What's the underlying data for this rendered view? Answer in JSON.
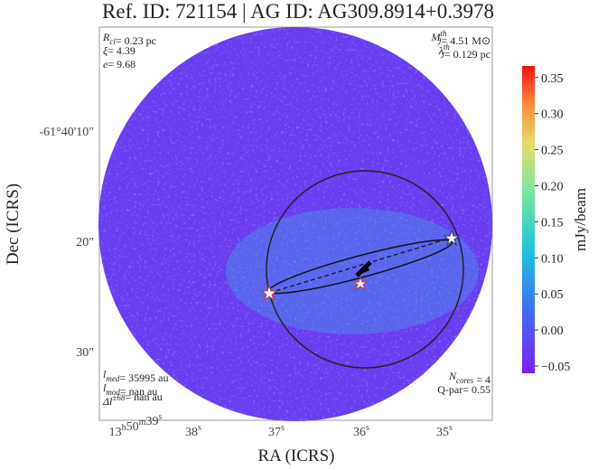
{
  "chart_data": {
    "type": "image",
    "title": "Ref. ID: 721154 | AG ID: AG309.8914+0.3978",
    "xlabel": "RA (ICRS)",
    "ylabel": "Dec (ICRS)",
    "xticks": [
      [
        [
          "13",
          "h"
        ],
        [
          "50",
          "m"
        ],
        [
          "39",
          "s"
        ]
      ],
      [
        [
          "38",
          "s"
        ]
      ],
      [
        [
          "37",
          "s"
        ]
      ],
      [
        [
          "36",
          "s"
        ]
      ],
      [
        [
          "35",
          "s"
        ]
      ]
    ],
    "yticks": [
      "-61°40'10\"",
      "20\"",
      "30\""
    ],
    "annotations": {
      "top_left": [
        [
          [
            "R",
            "cl",
            ""
          ],
          [
            "= 0.23 pc",
            "",
            ""
          ]
        ],
        [
          [
            "ξ",
            "",
            ""
          ],
          [
            "= 4.39",
            "",
            ""
          ]
        ],
        [
          [
            "e",
            "",
            ""
          ],
          [
            "= 9.68",
            "",
            ""
          ]
        ]
      ],
      "top_right": [
        [
          [
            "M",
            "J",
            "th"
          ],
          [
            "= 4.51 M",
            "",
            ""
          ],
          [
            "⊙",
            "",
            ""
          ]
        ],
        [
          [
            "λ",
            "J",
            "th"
          ],
          [
            "= 0.129 pc",
            "",
            ""
          ]
        ]
      ],
      "bottom_left": [
        [
          [
            "l",
            "med",
            ""
          ],
          [
            "= 35995 au",
            "",
            ""
          ]
        ],
        [
          [
            "l",
            "mod",
            ""
          ],
          [
            "= nan au",
            "",
            ""
          ]
        ],
        [
          [
            "Δl",
            "",
            "±68"
          ],
          [
            "= nan au",
            "",
            ""
          ]
        ]
      ],
      "bottom_right": [
        [
          [
            "N",
            "cores",
            ""
          ],
          [
            " = 4",
            "",
            ""
          ]
        ],
        [
          [
            "Q-par= 0.55",
            "",
            ""
          ]
        ]
      ]
    },
    "colorbar": {
      "label": "mJy/beam",
      "lim": [
        -0.06,
        0.366
      ],
      "ticks": [
        {
          "value": -0.05,
          "label": "−0.05"
        },
        {
          "value": 0,
          "label": "0.00"
        },
        {
          "value": 0.05,
          "label": "0.05"
        },
        {
          "value": 0.1,
          "label": "0.10"
        },
        {
          "value": 0.15,
          "label": "0.15"
        },
        {
          "value": 0.2,
          "label": "0.20"
        },
        {
          "value": 0.25,
          "label": "0.25"
        },
        {
          "value": 0.3,
          "label": "0.30"
        },
        {
          "value": 0.35,
          "label": "0.35"
        }
      ]
    }
  }
}
